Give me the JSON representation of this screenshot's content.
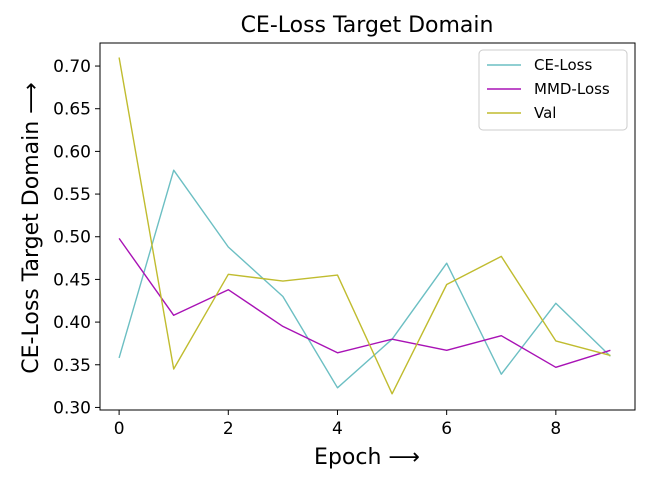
{
  "chart_data": {
    "type": "line",
    "title": "CE-Loss Target Domain",
    "xlabel": "Epoch ⟶",
    "ylabel": "CE-Loss Target Domain ⟶",
    "x": [
      0,
      1,
      2,
      3,
      4,
      5,
      6,
      7,
      8,
      9
    ],
    "xlim": [
      -0.35,
      9.45
    ],
    "ylim": [
      0.297,
      0.727
    ],
    "xticks": [
      "0",
      "2",
      "4",
      "6",
      "8"
    ],
    "yticks": [
      "0.30",
      "0.35",
      "0.40",
      "0.45",
      "0.50",
      "0.55",
      "0.60",
      "0.65",
      "0.70"
    ],
    "grid": false,
    "legend_position": "top-right",
    "series": [
      {
        "name": "CE-Loss",
        "color": "#6cbfc3",
        "values": [
          0.358,
          0.578,
          0.488,
          0.43,
          0.323,
          0.38,
          0.469,
          0.339,
          0.422,
          0.36
        ]
      },
      {
        "name": "MMD-Loss",
        "color": "#a812b5",
        "values": [
          0.498,
          0.408,
          0.438,
          0.395,
          0.364,
          0.38,
          0.367,
          0.384,
          0.347,
          0.367
        ]
      },
      {
        "name": "Val",
        "color": "#c0bc2f",
        "values": [
          0.71,
          0.345,
          0.456,
          0.448,
          0.455,
          0.316,
          0.444,
          0.477,
          0.378,
          0.361
        ]
      }
    ]
  }
}
